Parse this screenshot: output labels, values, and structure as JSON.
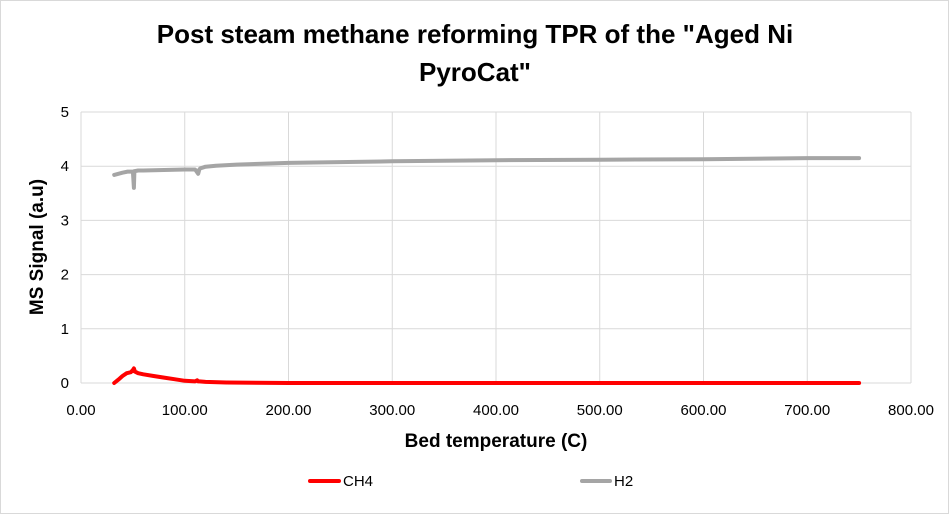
{
  "chart_data": {
    "type": "line",
    "title_lines": [
      "Post steam methane reforming TPR of the \"Aged Ni",
      "PyroCat\""
    ],
    "xlabel": "Bed temperature (C)",
    "ylabel": "MS Signal (a.u)",
    "xlim": [
      0,
      800
    ],
    "ylim": [
      0,
      5
    ],
    "x_ticks": [
      0,
      100,
      200,
      300,
      400,
      500,
      600,
      700,
      800
    ],
    "x_tick_labels": [
      "0.00",
      "100.00",
      "200.00",
      "300.00",
      "400.00",
      "500.00",
      "600.00",
      "700.00",
      "800.00"
    ],
    "y_ticks": [
      0,
      1,
      2,
      3,
      4,
      5
    ],
    "y_tick_labels": [
      "0",
      "1",
      "2",
      "3",
      "4",
      "5"
    ],
    "grid": true,
    "legend_position": "bottom",
    "series": [
      {
        "name": "CH4",
        "color": "#ff0000",
        "x": [
          32,
          36,
          40,
          44,
          48,
          50,
          51,
          52,
          55,
          60,
          70,
          80,
          90,
          100,
          110,
          112,
          113,
          114,
          120,
          140,
          200,
          300,
          400,
          500,
          600,
          700,
          750
        ],
        "y": [
          0.0,
          0.06,
          0.13,
          0.18,
          0.2,
          0.24,
          0.27,
          0.21,
          0.18,
          0.16,
          0.13,
          0.1,
          0.07,
          0.04,
          0.03,
          0.05,
          0.03,
          0.03,
          0.02,
          0.01,
          0.0,
          0.0,
          0.0,
          0.0,
          0.0,
          0.0,
          0.0
        ]
      },
      {
        "name": "H2",
        "color": "#a5a5a5",
        "x": [
          32,
          40,
          45,
          50,
          51,
          51.5,
          52,
          55,
          60,
          80,
          100,
          110,
          113,
          114,
          115,
          120,
          130,
          150,
          200,
          300,
          400,
          500,
          600,
          700,
          750
        ],
        "y": [
          3.84,
          3.88,
          3.9,
          3.9,
          3.6,
          3.91,
          3.91,
          3.92,
          3.92,
          3.93,
          3.94,
          3.94,
          3.86,
          3.94,
          3.96,
          3.99,
          4.01,
          4.03,
          4.06,
          4.09,
          4.11,
          4.12,
          4.13,
          4.15,
          4.15
        ]
      }
    ]
  }
}
